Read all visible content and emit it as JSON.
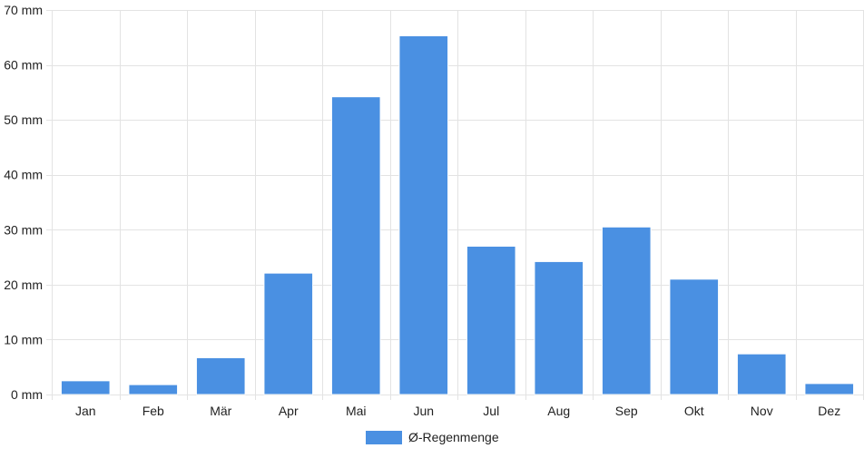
{
  "chart_data": {
    "type": "bar",
    "categories": [
      "Jan",
      "Feb",
      "Mär",
      "Apr",
      "Mai",
      "Jun",
      "Jul",
      "Aug",
      "Sep",
      "Okt",
      "Nov",
      "Dez"
    ],
    "series": [
      {
        "name": "Ø-Regenmenge",
        "values": [
          2.5,
          1.8,
          6.7,
          22.1,
          54.2,
          65.3,
          27.0,
          24.2,
          30.5,
          21.0,
          7.4,
          2.0
        ],
        "color": "#4A90E2"
      }
    ],
    "ylim": [
      0,
      70
    ],
    "y_ticks": [
      0,
      10,
      20,
      30,
      40,
      50,
      60,
      70
    ],
    "y_unit": "mm",
    "grid": true,
    "legend": "bottom",
    "title": "",
    "xlabel": "",
    "ylabel": ""
  }
}
